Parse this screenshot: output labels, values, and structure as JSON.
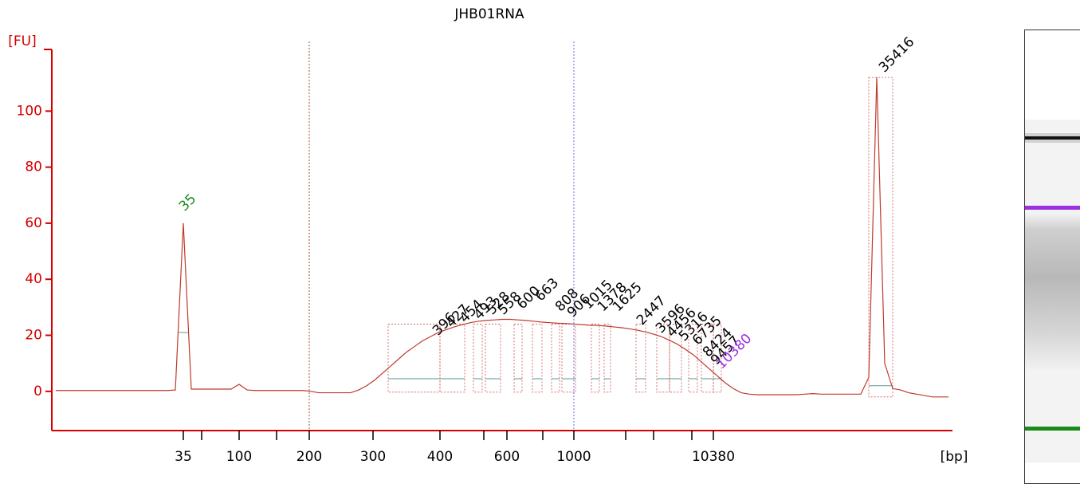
{
  "chart_data": {
    "type": "line",
    "title": "JHB01RNA",
    "y_label": "[FU]",
    "x_label": "[bp]",
    "ylim": [
      -14,
      122
    ],
    "yticks": [
      0,
      20,
      40,
      60,
      80,
      100
    ],
    "xtick_labels": [
      "35",
      null,
      "100",
      null,
      "200",
      "300",
      "400",
      null,
      "600",
      null,
      "1000",
      null,
      null,
      null,
      "10380"
    ],
    "color": "#c0392b",
    "axis_color": "#d40000",
    "values": [
      0.3,
      0.3,
      0.3,
      0.3,
      0.3,
      0.3,
      0.3,
      0.3,
      0.3,
      0.3,
      0.3,
      0.3,
      0.3,
      0.3,
      0.3,
      0.5,
      60,
      0.8,
      0.8,
      0.8,
      0.8,
      0.8,
      0.8,
      2.5,
      0.5,
      0.3,
      0.3,
      0.3,
      0.3,
      0.3,
      0.3,
      0.3,
      0,
      -0.5,
      -0.5,
      -0.5,
      -0.5,
      -0.5,
      0.5,
      2,
      4,
      6.5,
      9,
      11.5,
      14,
      16,
      18,
      19.5,
      21,
      22,
      23,
      23.8,
      24.5,
      25,
      25.3,
      25.5,
      25.7,
      25.7,
      25.5,
      25.3,
      25,
      24.7,
      24.5,
      24.3,
      24.2,
      24,
      23.8,
      23.6,
      23.5,
      23.3,
      23,
      22.7,
      22.3,
      21.8,
      21.2,
      20.4,
      19.5,
      18.2,
      16.8,
      15,
      13,
      10.5,
      8,
      5.5,
      3,
      1,
      -0.5,
      -1,
      -1.2,
      -1.2,
      -1.2,
      -1.2,
      -1.2,
      -1.2,
      -1,
      -0.8,
      -1,
      -1,
      -1,
      -1,
      -1,
      -1,
      5,
      112,
      10,
      1,
      0.5,
      -0.5,
      -1,
      -1.5,
      -2,
      -2,
      -2
    ],
    "peak_labels": [
      {
        "text": "35",
        "color": "#1a8a1a"
      },
      {
        "text": "396",
        "color": "#000000"
      },
      {
        "text": "427",
        "color": "#000000"
      },
      {
        "text": "454",
        "color": "#000000"
      },
      {
        "text": "493",
        "color": "#000000"
      },
      {
        "text": "528",
        "color": "#000000"
      },
      {
        "text": "558",
        "color": "#000000"
      },
      {
        "text": "600",
        "color": "#000000"
      },
      {
        "text": "663",
        "color": "#000000"
      },
      {
        "text": "808",
        "color": "#000000"
      },
      {
        "text": "906",
        "color": "#000000"
      },
      {
        "text": "1015",
        "color": "#000000"
      },
      {
        "text": "1378",
        "color": "#000000"
      },
      {
        "text": "1625",
        "color": "#000000"
      },
      {
        "text": "2447",
        "color": "#000000"
      },
      {
        "text": "3596",
        "color": "#000000"
      },
      {
        "text": "4456",
        "color": "#000000"
      },
      {
        "text": "5316",
        "color": "#000000"
      },
      {
        "text": "6735",
        "color": "#000000"
      },
      {
        "text": "8424",
        "color": "#000000"
      },
      {
        "text": "9457",
        "color": "#000000"
      },
      {
        "text": "10380",
        "color": "#9b30e0"
      },
      {
        "text": "35416",
        "color": "#000000"
      }
    ]
  }
}
